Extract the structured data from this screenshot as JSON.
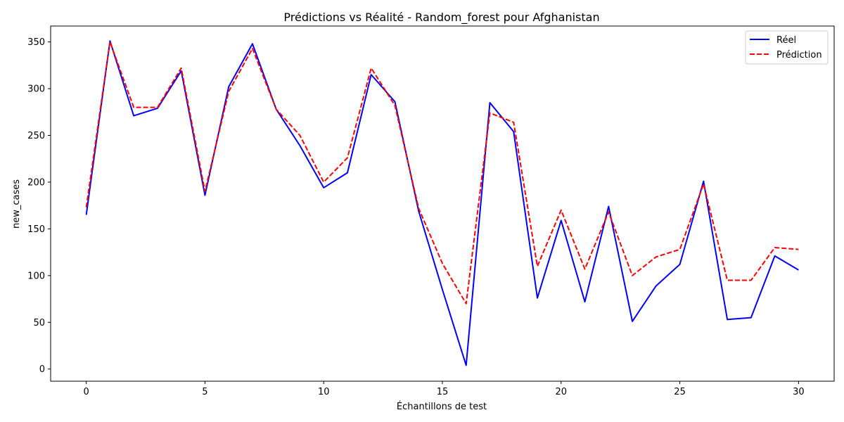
{
  "chart_data": {
    "type": "line",
    "title": "Prédictions vs Réalité - Random_forest pour Afghanistan",
    "xlabel": "Échantillons de test",
    "ylabel": "new_cases",
    "xlim": [
      -1.5,
      31.5
    ],
    "ylim": [
      -13,
      367
    ],
    "xticks": [
      0,
      5,
      10,
      15,
      20,
      25,
      30
    ],
    "yticks": [
      0,
      50,
      100,
      150,
      200,
      250,
      300,
      350
    ],
    "grid": false,
    "legend_position": "top-right",
    "x": [
      0,
      1,
      2,
      3,
      4,
      5,
      6,
      7,
      8,
      9,
      10,
      11,
      12,
      13,
      14,
      15,
      16,
      17,
      18,
      19,
      20,
      21,
      22,
      23,
      24,
      25,
      26,
      27,
      28,
      29,
      30
    ],
    "series": [
      {
        "name": "Réel",
        "color": "#0000ff",
        "style": "solid",
        "values": [
          165,
          351,
          271,
          279,
          319,
          186,
          302,
          348,
          278,
          239,
          194,
          210,
          315,
          286,
          169,
          85,
          4,
          285,
          254,
          76,
          159,
          72,
          174,
          51,
          89,
          112,
          201,
          53,
          55,
          121,
          106
        ]
      },
      {
        "name": "Prédiction",
        "color": "#ff0000",
        "style": "dashed",
        "values": [
          173,
          350,
          280,
          280,
          322,
          190,
          297,
          343,
          278,
          250,
          200,
          226,
          322,
          282,
          172,
          113,
          70,
          274,
          264,
          110,
          170,
          107,
          168,
          100,
          120,
          128,
          198,
          95,
          95,
          130,
          128
        ]
      }
    ]
  }
}
